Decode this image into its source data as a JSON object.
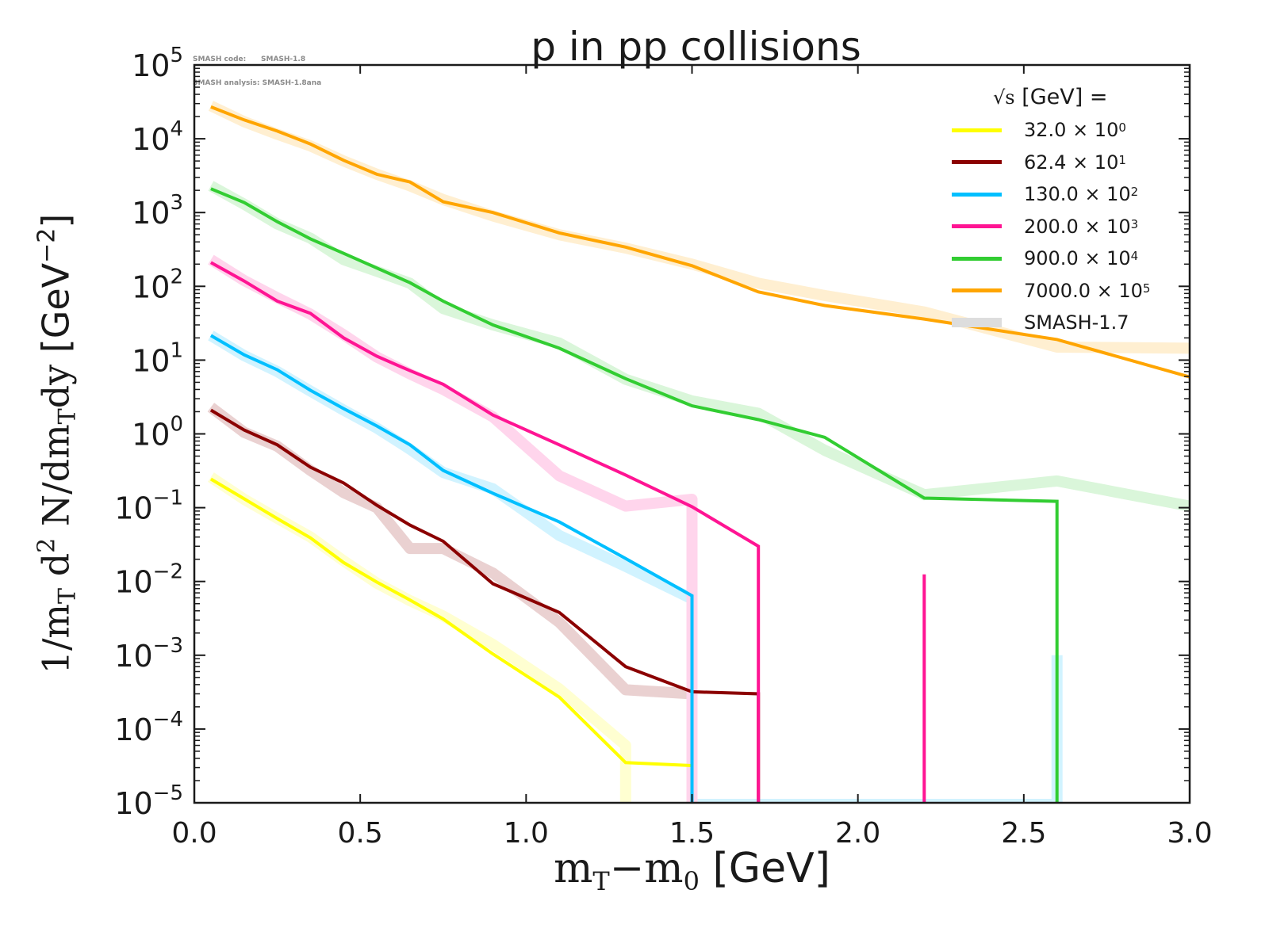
{
  "watermark": {
    "line1": "SMASH code:      SMASH-1.8",
    "line2": "SMASH analysis: SMASH-1.8ana"
  },
  "chart_data": {
    "type": "line",
    "title": "p in pp collisions",
    "xlabel": {
      "main": "m",
      "sub1": "T",
      "mid": "−m",
      "sub2": "0",
      "unit": " [GeV]"
    },
    "ylabel": {
      "p1": "1/m",
      "s1": "T",
      "p2": " d",
      "s2": "2",
      "p3": " N/dm",
      "s3": "T",
      "p4": "dy ",
      "unit": "[GeV",
      "unit_sup": "−2",
      "unit_close": "]"
    },
    "x_scale": "linear",
    "y_scale": "log",
    "xlim": [
      0.0,
      3.0
    ],
    "ylim": [
      1e-05,
      100000.0
    ],
    "x_ticks": [
      0.0,
      0.5,
      1.0,
      1.5,
      2.0,
      2.5,
      3.0
    ],
    "x_tick_labels": [
      "0.0",
      "0.5",
      "1.0",
      "1.5",
      "2.0",
      "2.5",
      "3.0"
    ],
    "y_ticks_exp": [
      5,
      4,
      3,
      2,
      1,
      0,
      -1,
      -2,
      -3,
      -4,
      -5
    ],
    "y_tick_labels": [
      "10^5",
      "10^4",
      "10^3",
      "10^2",
      "10^1",
      "10^0",
      "10^-1",
      "10^-2",
      "10^-3",
      "10^-4",
      "10^-5"
    ],
    "grid": false,
    "legend": {
      "placement": "top-right",
      "title": "[GeV] =",
      "title_prefix": "√s",
      "entries": [
        {
          "label": "32.0",
          "times": "×",
          "base": "10",
          "exp": "0",
          "color": "#ffff00"
        },
        {
          "label": "62.4",
          "times": "×",
          "base": "10",
          "exp": "1",
          "color": "#8b0000"
        },
        {
          "label": "130.0",
          "times": "×",
          "base": "10",
          "exp": "2",
          "color": "#00bfff"
        },
        {
          "label": "200.0",
          "times": "×",
          "base": "10",
          "exp": "3",
          "color": "#ff1493"
        },
        {
          "label": "900.0",
          "times": "×",
          "base": "10",
          "exp": "4",
          "color": "#32cd32"
        },
        {
          "label": "7000.0",
          "times": "×",
          "base": "10",
          "exp": "5",
          "color": "#ffa500"
        }
      ],
      "reference_entry": {
        "label": "SMASH-1.7",
        "color": "#dddddd"
      }
    },
    "series": [
      {
        "name": "32.0 GeV × 10^0",
        "color": "#ffff00",
        "x": [
          0.05,
          0.15,
          0.25,
          0.35,
          0.45,
          0.55,
          0.65,
          0.75,
          0.9,
          1.1,
          1.3,
          1.5,
          1.5
        ],
        "y": [
          0.244,
          0.132,
          0.071,
          0.039,
          0.018,
          0.0098,
          0.0056,
          0.0031,
          0.00104,
          0.00027,
          3.5e-05,
          3.2e-05,
          1e-06
        ],
        "reference": {
          "x": [
            0.05,
            0.15,
            0.25,
            0.35,
            0.45,
            0.55,
            0.65,
            0.75,
            0.9,
            1.1,
            1.3,
            1.3
          ],
          "y": [
            0.26,
            0.13,
            0.072,
            0.04,
            0.019,
            0.0095,
            0.0055,
            0.0034,
            0.0014,
            0.00035,
            6e-05,
            1e-06
          ]
        }
      },
      {
        "name": "62.4 GeV × 10^1",
        "color": "#8b0000",
        "x": [
          0.05,
          0.15,
          0.25,
          0.35,
          0.45,
          0.55,
          0.65,
          0.75,
          0.9,
          1.1,
          1.3,
          1.5,
          1.7,
          1.7
        ],
        "y": [
          2.1,
          1.13,
          0.71,
          0.354,
          0.216,
          0.108,
          0.058,
          0.035,
          0.0093,
          0.0038,
          0.0007,
          0.00032,
          0.0003,
          1e-06
        ],
        "reference": {
          "x": [
            0.05,
            0.15,
            0.25,
            0.35,
            0.45,
            0.55,
            0.65,
            0.75,
            0.9,
            1.1,
            1.3,
            1.5,
            1.5
          ],
          "y": [
            2.3,
            1.05,
            0.68,
            0.32,
            0.16,
            0.1,
            0.028,
            0.028,
            0.013,
            0.0028,
            0.00034,
            0.0003,
            1e-06
          ]
        }
      },
      {
        "name": "130.0 GeV × 10^2",
        "color": "#00bfff",
        "x": [
          0.05,
          0.15,
          0.25,
          0.35,
          0.45,
          0.55,
          0.65,
          0.75,
          0.9,
          1.1,
          1.3,
          1.5,
          1.5
        ],
        "y": [
          21.5,
          11.8,
          7.4,
          3.9,
          2.2,
          1.28,
          0.71,
          0.32,
          0.157,
          0.064,
          0.0205,
          0.0064,
          1e-06
        ],
        "reference": {
          "x": [
            0.05,
            0.15,
            0.25,
            0.35,
            0.45,
            0.55,
            0.65,
            0.75,
            0.9,
            1.1,
            1.3,
            1.5,
            1.5,
            2.6,
            2.6
          ],
          "y": [
            21.5,
            11.5,
            7.0,
            3.8,
            2.1,
            1.2,
            0.62,
            0.3,
            0.18,
            0.042,
            0.016,
            0.0058,
            1e-06,
            1e-06,
            0.001
          ]
        }
      },
      {
        "name": "200.0 GeV × 10^3",
        "color": "#ff1493",
        "x": [
          0.05,
          0.15,
          0.25,
          0.35,
          0.45,
          0.55,
          0.65,
          0.75,
          0.9,
          1.1,
          1.3,
          1.5,
          1.7,
          1.7
        ],
        "y": [
          210,
          118,
          63,
          43,
          20,
          11.3,
          7.2,
          4.7,
          1.8,
          0.71,
          0.277,
          0.103,
          0.03,
          1e-06
        ],
        "extra_segment": {
          "x": [
            2.2,
            2.2
          ],
          "y": [
            0.0125,
            1e-06
          ]
        },
        "reference": {
          "x": [
            0.05,
            0.15,
            0.25,
            0.35,
            0.45,
            0.55,
            0.65,
            0.75,
            0.9,
            1.1,
            1.3,
            1.5,
            1.5
          ],
          "y": [
            230,
            120,
            70,
            42,
            22,
            11,
            6.5,
            4.0,
            1.7,
            0.27,
            0.105,
            0.13,
            1e-06
          ]
        }
      },
      {
        "name": "900.0 GeV × 10^4",
        "color": "#32cd32",
        "x": [
          0.05,
          0.15,
          0.25,
          0.35,
          0.45,
          0.65,
          0.75,
          0.9,
          1.1,
          1.3,
          1.5,
          1.7,
          1.9,
          2.2,
          2.6,
          2.6
        ],
        "y": [
          2100,
          1370,
          750,
          440,
          280,
          112,
          63,
          30,
          14.5,
          5.6,
          2.4,
          1.56,
          0.9,
          0.135,
          0.122,
          1e-06
        ],
        "reference": {
          "x": [
            0.05,
            0.15,
            0.25,
            0.35,
            0.45,
            0.55,
            0.65,
            0.75,
            0.9,
            1.1,
            1.3,
            1.5,
            1.7,
            1.9,
            2.2,
            2.6,
            3.0
          ],
          "y": [
            2300,
            1300,
            700,
            450,
            230,
            160,
            110,
            50,
            30,
            17,
            5.5,
            2.8,
            1.9,
            0.6,
            0.15,
            0.23,
            0.105
          ]
        }
      },
      {
        "name": "7000.0 GeV × 10^5",
        "color": "#ffa500",
        "x": [
          0.05,
          0.15,
          0.25,
          0.35,
          0.45,
          0.55,
          0.65,
          0.75,
          0.9,
          1.1,
          1.3,
          1.5,
          1.7,
          1.9,
          2.2,
          2.6,
          3.0
        ],
        "y": [
          27000,
          18000,
          12700,
          8500,
          5100,
          3300,
          2600,
          1400,
          1000,
          530,
          340,
          190,
          84,
          55,
          36,
          19,
          5.9
        ],
        "reference": {
          "x": [
            0.05,
            0.15,
            0.25,
            0.35,
            0.45,
            0.55,
            0.65,
            0.75,
            0.9,
            1.1,
            1.3,
            1.5,
            1.7,
            1.9,
            2.2,
            2.6,
            3.0
          ],
          "y": [
            28000,
            17000,
            11500,
            8000,
            5000,
            3300,
            2300,
            1500,
            900,
            500,
            330,
            200,
            110,
            75,
            45,
            15,
            14.5
          ]
        }
      }
    ]
  }
}
